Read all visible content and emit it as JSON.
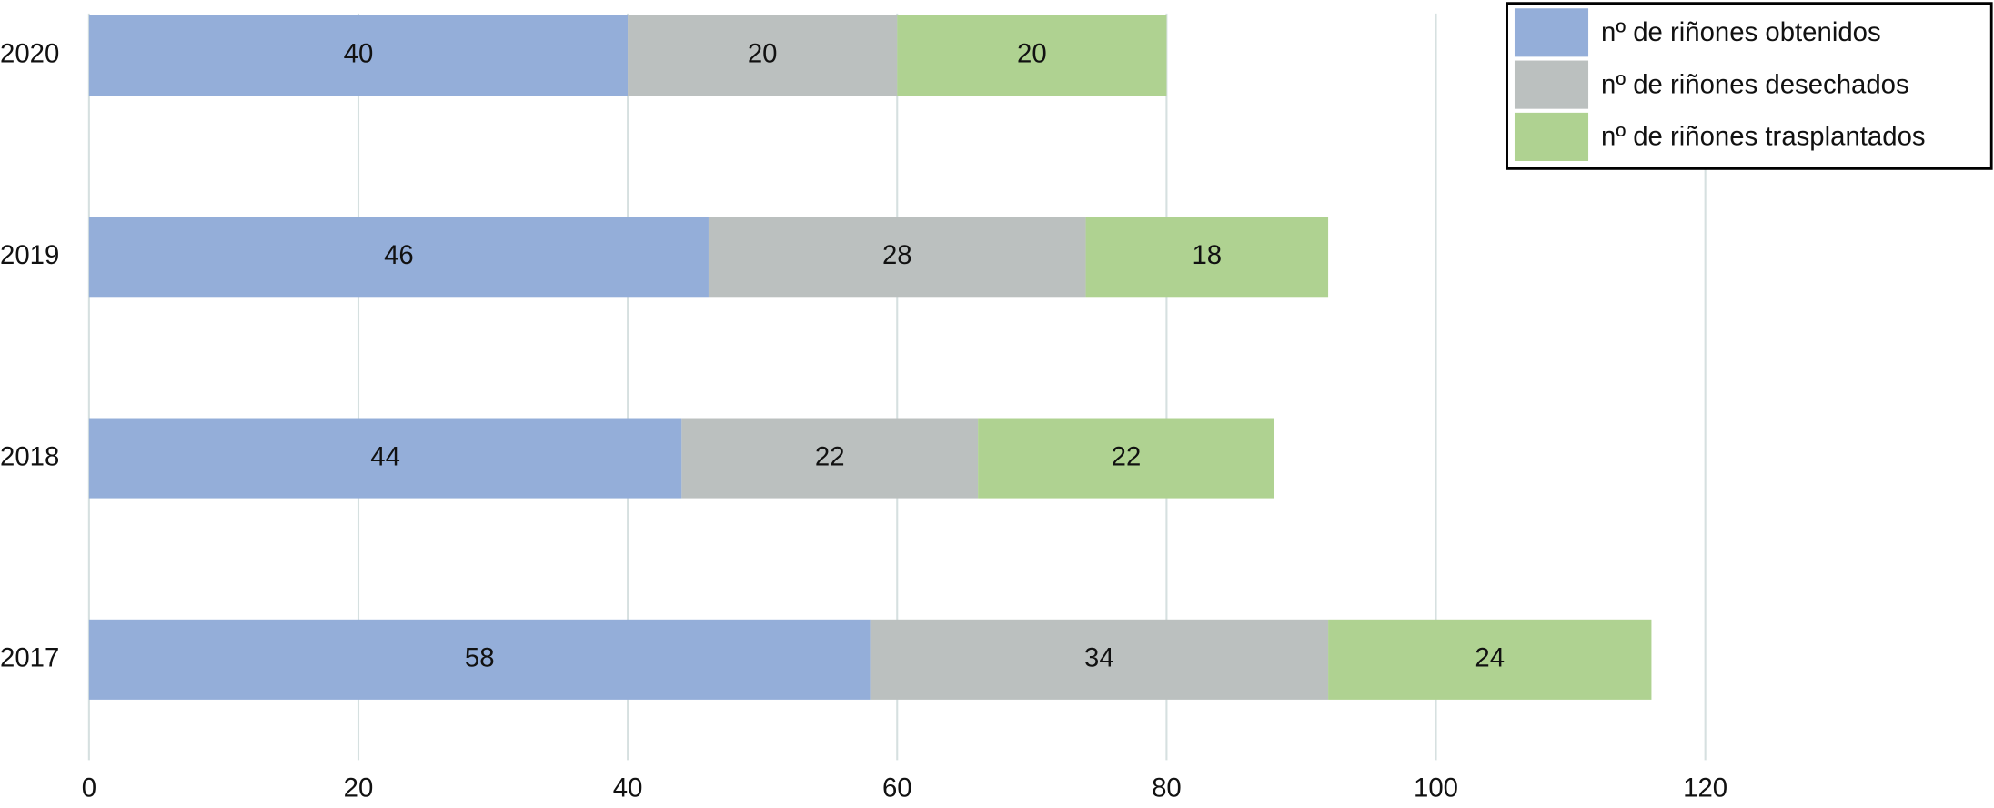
{
  "chart_data": {
    "type": "stacked-bar-horizontal",
    "categories": [
      "2020",
      "2019",
      "2018",
      "2017"
    ],
    "series": [
      {
        "name": "nº de riñones obtenidos",
        "color": "#94aed9",
        "values": [
          40,
          46,
          44,
          58
        ]
      },
      {
        "name": "nº de riñones desechados",
        "color": "#bbc0bf",
        "values": [
          20,
          28,
          22,
          34
        ]
      },
      {
        "name": "nº de riñones trasplantados",
        "color": "#afd291",
        "values": [
          20,
          18,
          22,
          24
        ]
      }
    ],
    "xlim": [
      0,
      120
    ],
    "xticks": [
      0,
      20,
      40,
      60,
      80,
      100,
      120
    ],
    "grid": true,
    "legend": "top-right"
  }
}
